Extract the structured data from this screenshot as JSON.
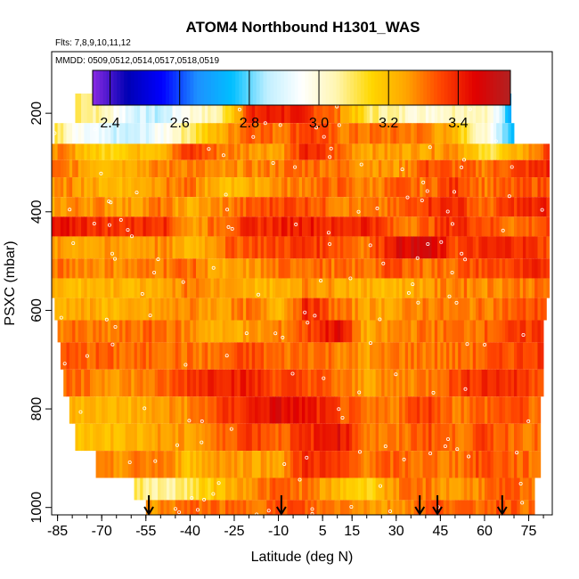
{
  "chart_data": {
    "type": "heatmap",
    "title": "ATOM4 Northbound H1301_WAS",
    "subtitles": [
      "Flts: 7,8,9,10,11,12",
      "MMDD: 0509,0512,0514,0517,0518,0519"
    ],
    "xlabel": "Latitude (deg N)",
    "ylabel": "PSXC (mbar)",
    "xlim": [
      -87,
      83
    ],
    "ylim": [
      1015,
      75
    ],
    "x_ticks": [
      -85,
      -70,
      -55,
      -40,
      -25,
      -10,
      5,
      15,
      30,
      45,
      60,
      75
    ],
    "x_tick_labels": [
      "-85",
      "-70",
      "-55",
      "-40",
      "-25",
      "-10",
      "5",
      "15",
      "30",
      "45",
      "60",
      "75"
    ],
    "y_ticks": [
      1000,
      800,
      600,
      400,
      200
    ],
    "y_tick_labels": [
      "1000",
      "800",
      "600",
      "400",
      "200"
    ],
    "colorbar": {
      "range": [
        2.35,
        3.55
      ],
      "ticks": [
        2.4,
        2.6,
        2.8,
        3.0,
        3.2,
        3.4
      ],
      "tick_labels": [
        "2.4",
        "2.6",
        "2.8",
        "3.0",
        "3.2",
        "3.4"
      ],
      "colors": [
        "#8a2be2",
        "#0000b4",
        "#0000ff",
        "#1e90ff",
        "#00bfff",
        "#bfefff",
        "#ffffff",
        "#fff6b0",
        "#ffd700",
        "#ffa500",
        "#ff4500",
        "#e00000",
        "#b22222"
      ]
    },
    "arrows_latitude": [
      -54,
      -9,
      38,
      44,
      66
    ],
    "layers": [
      {
        "p_top": 160,
        "p_bot": 220,
        "lat_start": -79,
        "lat_end": 69,
        "lats": [
          -80,
          -70,
          -60,
          -50,
          -40,
          -30,
          -20,
          -10,
          0,
          10,
          20,
          30,
          40,
          50,
          60,
          66,
          69
        ],
        "values": [
          3.12,
          3.05,
          2.9,
          2.85,
          3.0,
          3.05,
          3.38,
          3.42,
          3.38,
          3.3,
          3.1,
          3.05,
          3.0,
          3.05,
          3.05,
          2.85,
          2.7
        ]
      },
      {
        "p_top": 220,
        "p_bot": 262,
        "lat_start": -86,
        "lat_end": 70,
        "lats": [
          -86,
          -80,
          -70,
          -60,
          -50,
          -40,
          -30,
          -20,
          -10,
          0,
          10,
          20,
          30,
          40,
          50,
          60,
          66,
          70
        ],
        "values": [
          3.15,
          2.95,
          2.9,
          2.85,
          2.95,
          3.1,
          3.22,
          3.35,
          3.3,
          3.38,
          3.3,
          3.3,
          3.3,
          3.3,
          3.2,
          3.0,
          2.85,
          2.75
        ]
      },
      {
        "p_top": 262,
        "p_bot": 295,
        "lat_start": -87,
        "lat_end": 82,
        "lats": [
          -87,
          -80,
          -70,
          -60,
          -50,
          -40,
          -30,
          -20,
          -10,
          0,
          10,
          20,
          30,
          40,
          50,
          60,
          70,
          82
        ],
        "values": [
          3.3,
          3.25,
          3.15,
          3.2,
          3.22,
          3.38,
          3.3,
          3.28,
          3.25,
          3.4,
          3.32,
          3.25,
          3.25,
          3.25,
          3.3,
          3.1,
          3.2,
          3.35
        ]
      },
      {
        "p_top": 295,
        "p_bot": 330,
        "lat_start": -87,
        "lat_end": 82,
        "lats": [
          -87,
          -80,
          -70,
          -60,
          -50,
          -40,
          -30,
          -20,
          -10,
          0,
          10,
          20,
          30,
          40,
          50,
          60,
          70,
          82
        ],
        "values": [
          3.3,
          3.28,
          3.22,
          3.25,
          3.28,
          3.3,
          3.25,
          3.28,
          3.3,
          3.32,
          3.3,
          3.28,
          3.25,
          3.35,
          3.32,
          3.3,
          3.35,
          3.4
        ]
      },
      {
        "p_top": 330,
        "p_bot": 370,
        "lat_start": -87,
        "lat_end": 82,
        "lats": [
          -87,
          -80,
          -70,
          -60,
          -50,
          -40,
          -30,
          -20,
          -10,
          0,
          10,
          20,
          30,
          40,
          50,
          60,
          70,
          82
        ],
        "values": [
          3.25,
          3.28,
          3.22,
          3.22,
          3.28,
          3.3,
          3.2,
          3.22,
          3.28,
          3.3,
          3.32,
          3.28,
          3.32,
          3.3,
          3.38,
          3.3,
          3.32,
          3.35
        ]
      },
      {
        "p_top": 370,
        "p_bot": 410,
        "lat_start": -87,
        "lat_end": 82,
        "lats": [
          -87,
          -80,
          -70,
          -60,
          -50,
          -40,
          -30,
          -20,
          -10,
          0,
          10,
          20,
          30,
          40,
          50,
          60,
          70,
          82
        ],
        "values": [
          3.25,
          3.28,
          3.28,
          3.25,
          3.3,
          3.22,
          3.28,
          3.32,
          3.36,
          3.35,
          3.3,
          3.28,
          3.3,
          3.38,
          3.4,
          3.3,
          3.38,
          3.4
        ]
      },
      {
        "p_top": 410,
        "p_bot": 450,
        "lat_start": -87,
        "lat_end": 82,
        "lats": [
          -87,
          -80,
          -70,
          -60,
          -50,
          -40,
          -30,
          -20,
          -10,
          0,
          10,
          20,
          30,
          40,
          50,
          60,
          70,
          82
        ],
        "values": [
          3.4,
          3.42,
          3.38,
          3.38,
          3.4,
          3.25,
          3.32,
          3.38,
          3.4,
          3.42,
          3.38,
          3.42,
          3.3,
          3.32,
          3.4,
          3.35,
          3.3,
          3.35
        ]
      },
      {
        "p_top": 450,
        "p_bot": 495,
        "lat_start": -87,
        "lat_end": 82,
        "lats": [
          -87,
          -80,
          -70,
          -60,
          -50,
          -40,
          -30,
          -20,
          -10,
          0,
          10,
          20,
          30,
          40,
          50,
          60,
          70,
          82
        ],
        "values": [
          3.25,
          3.25,
          3.25,
          3.25,
          3.28,
          3.2,
          3.3,
          3.35,
          3.35,
          3.38,
          3.35,
          3.3,
          3.45,
          3.48,
          3.35,
          3.38,
          3.4,
          3.35
        ]
      },
      {
        "p_top": 495,
        "p_bot": 535,
        "lat_start": -87,
        "lat_end": 82,
        "lats": [
          -87,
          -80,
          -70,
          -60,
          -50,
          -40,
          -30,
          -20,
          -10,
          0,
          10,
          20,
          30,
          40,
          50,
          60,
          70,
          82
        ],
        "values": [
          3.3,
          3.3,
          3.28,
          3.28,
          3.3,
          3.32,
          3.22,
          3.25,
          3.3,
          3.32,
          3.3,
          3.3,
          3.35,
          3.3,
          3.32,
          3.35,
          3.35,
          3.4
        ]
      },
      {
        "p_top": 535,
        "p_bot": 575,
        "lat_start": -87,
        "lat_end": 82,
        "lats": [
          -87,
          -80,
          -70,
          -60,
          -50,
          -40,
          -30,
          -20,
          -10,
          0,
          10,
          20,
          30,
          40,
          50,
          60,
          70,
          82
        ],
        "values": [
          3.25,
          3.2,
          3.22,
          3.22,
          3.25,
          3.3,
          3.25,
          3.22,
          3.22,
          3.28,
          3.25,
          3.22,
          3.22,
          3.25,
          3.3,
          3.28,
          3.3,
          3.3
        ]
      },
      {
        "p_top": 575,
        "p_bot": 620,
        "lat_start": -86,
        "lat_end": 81,
        "lats": [
          -86,
          -80,
          -70,
          -60,
          -50,
          -40,
          -30,
          -20,
          -10,
          0,
          10,
          20,
          30,
          40,
          50,
          60,
          70,
          81
        ],
        "values": [
          3.2,
          3.25,
          3.22,
          3.22,
          3.25,
          3.28,
          3.25,
          3.3,
          3.22,
          3.4,
          3.3,
          3.25,
          3.25,
          3.3,
          3.28,
          3.3,
          3.32,
          3.35
        ]
      },
      {
        "p_top": 620,
        "p_bot": 665,
        "lat_start": -85,
        "lat_end": 80,
        "lats": [
          -85,
          -80,
          -70,
          -60,
          -50,
          -40,
          -30,
          -20,
          -10,
          0,
          10,
          20,
          30,
          40,
          50,
          60,
          70,
          80
        ],
        "values": [
          3.3,
          3.3,
          3.28,
          3.3,
          3.32,
          3.28,
          3.22,
          3.25,
          3.28,
          3.35,
          3.45,
          3.22,
          3.28,
          3.3,
          3.3,
          3.32,
          3.35,
          3.38
        ]
      },
      {
        "p_top": 665,
        "p_bot": 720,
        "lat_start": -84,
        "lat_end": 80,
        "lats": [
          -84,
          -80,
          -70,
          -60,
          -50,
          -40,
          -30,
          -20,
          -10,
          0,
          10,
          20,
          30,
          40,
          50,
          60,
          70,
          80
        ],
        "values": [
          3.35,
          3.32,
          3.32,
          3.3,
          3.32,
          3.3,
          3.3,
          3.35,
          3.3,
          3.32,
          3.3,
          3.25,
          3.3,
          3.3,
          3.3,
          3.32,
          3.35,
          3.38
        ]
      },
      {
        "p_top": 720,
        "p_bot": 775,
        "lat_start": -83,
        "lat_end": 80,
        "lats": [
          -83,
          -80,
          -70,
          -60,
          -50,
          -40,
          -30,
          -20,
          -10,
          0,
          10,
          20,
          30,
          40,
          50,
          60,
          70,
          80
        ],
        "values": [
          3.3,
          3.3,
          3.28,
          3.28,
          3.3,
          3.38,
          3.42,
          3.4,
          3.35,
          3.35,
          3.3,
          3.25,
          3.28,
          3.3,
          3.35,
          3.4,
          3.38,
          3.35
        ]
      },
      {
        "p_top": 775,
        "p_bot": 830,
        "lat_start": -81,
        "lat_end": 79,
        "lats": [
          -81,
          -70,
          -60,
          -50,
          -40,
          -30,
          -20,
          -10,
          0,
          10,
          20,
          30,
          40,
          50,
          60,
          70,
          79
        ],
        "values": [
          3.22,
          3.22,
          3.22,
          3.25,
          3.28,
          3.35,
          3.4,
          3.45,
          3.42,
          3.35,
          3.28,
          3.3,
          3.38,
          3.3,
          3.32,
          3.35,
          3.3
        ]
      },
      {
        "p_top": 830,
        "p_bot": 885,
        "lat_start": -79,
        "lat_end": 79,
        "lats": [
          -79,
          -70,
          -60,
          -50,
          -40,
          -30,
          -20,
          -10,
          0,
          10,
          20,
          30,
          40,
          50,
          60,
          70,
          79
        ],
        "values": [
          3.2,
          3.2,
          3.22,
          3.25,
          3.25,
          3.3,
          3.38,
          3.32,
          3.38,
          3.45,
          3.3,
          3.28,
          3.35,
          3.3,
          3.35,
          3.32,
          3.3
        ]
      },
      {
        "p_top": 885,
        "p_bot": 940,
        "lat_start": -72,
        "lat_end": 79,
        "lats": [
          -72,
          -60,
          -50,
          -40,
          -30,
          -20,
          -10,
          0,
          10,
          20,
          30,
          40,
          50,
          60,
          70,
          79
        ],
        "values": [
          3.25,
          3.28,
          3.3,
          3.2,
          3.28,
          3.25,
          3.25,
          3.4,
          3.35,
          3.3,
          3.32,
          3.3,
          3.3,
          3.35,
          3.32,
          3.3
        ]
      },
      {
        "p_top": 940,
        "p_bot": 985,
        "lat_start": -59,
        "lat_end": 77,
        "lats": [
          -59,
          -50,
          -40,
          -30,
          -20,
          -10,
          0,
          10,
          20,
          30,
          40,
          50,
          60,
          70,
          77
        ],
        "values": [
          3.1,
          3.05,
          3.1,
          3.2,
          3.28,
          3.32,
          3.3,
          3.2,
          3.15,
          3.28,
          3.3,
          3.25,
          3.3,
          3.32,
          3.28
        ]
      },
      {
        "p_top": 985,
        "p_bot": 1015,
        "lat_start": -55,
        "lat_end": 77,
        "lats": [
          -55,
          -45,
          -35,
          -25,
          -15,
          -5,
          5,
          15,
          25,
          35,
          45,
          55,
          65,
          77
        ],
        "values": [
          3.25,
          3.3,
          3.32,
          3.3,
          3.32,
          3.35,
          3.3,
          3.3,
          3.25,
          3.3,
          3.35,
          3.3,
          3.35,
          3.3
        ]
      }
    ]
  }
}
